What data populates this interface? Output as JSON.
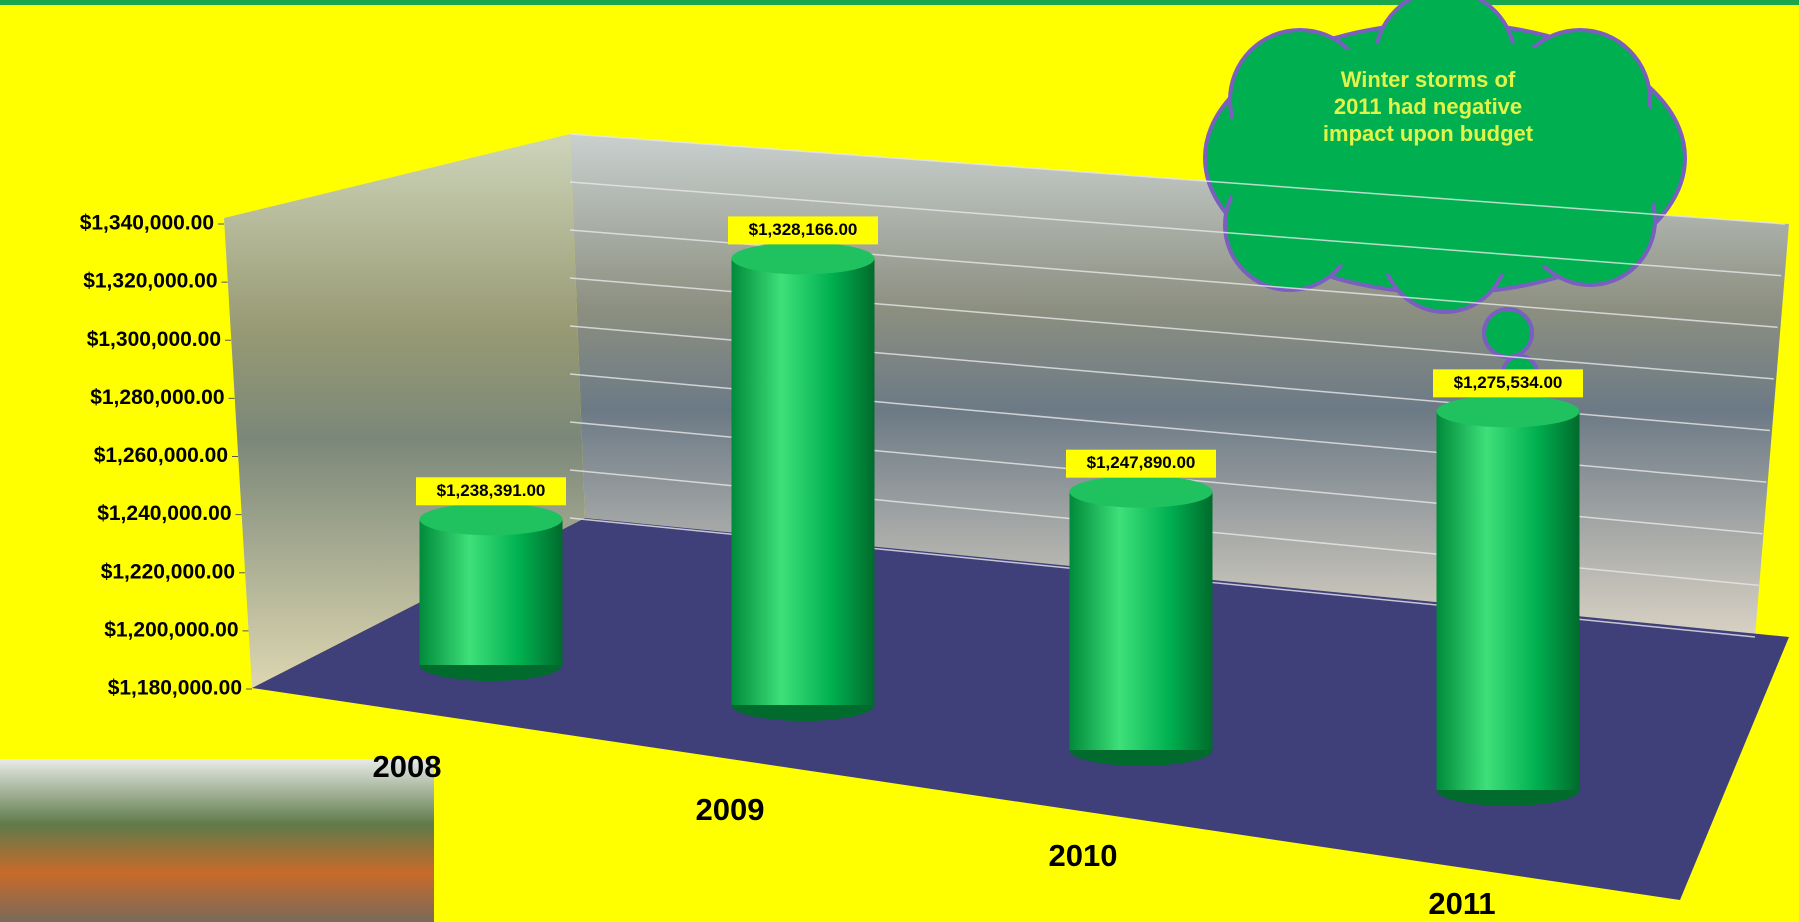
{
  "chart_data": {
    "type": "bar",
    "categories": [
      "2008",
      "2009",
      "2010",
      "2011"
    ],
    "values": [
      1238391,
      1328166,
      1247890,
      1275534
    ],
    "value_labels": [
      "$1,238,391.00",
      "$1,328,166.00",
      "$1,247,890.00",
      "$1,275,534.00"
    ],
    "color": "#00b050",
    "ylim": [
      1180000,
      1340000
    ],
    "yticks": [
      {
        "value": 1180000,
        "label": "$1,180,000.00"
      },
      {
        "value": 1200000,
        "label": "$1,200,000.00"
      },
      {
        "value": 1220000,
        "label": "$1,220,000.00"
      },
      {
        "value": 1240000,
        "label": "$1,240,000.00"
      },
      {
        "value": 1260000,
        "label": "$1,260,000.00"
      },
      {
        "value": 1280000,
        "label": "$1,280,000.00"
      },
      {
        "value": 1300000,
        "label": "$1,300,000.00"
      },
      {
        "value": 1320000,
        "label": "$1,320,000.00"
      },
      {
        "value": 1340000,
        "label": "$1,340,000.00"
      }
    ],
    "grid": true,
    "annotation": "Winter storms of 2011 had negative impact upon budget"
  }
}
